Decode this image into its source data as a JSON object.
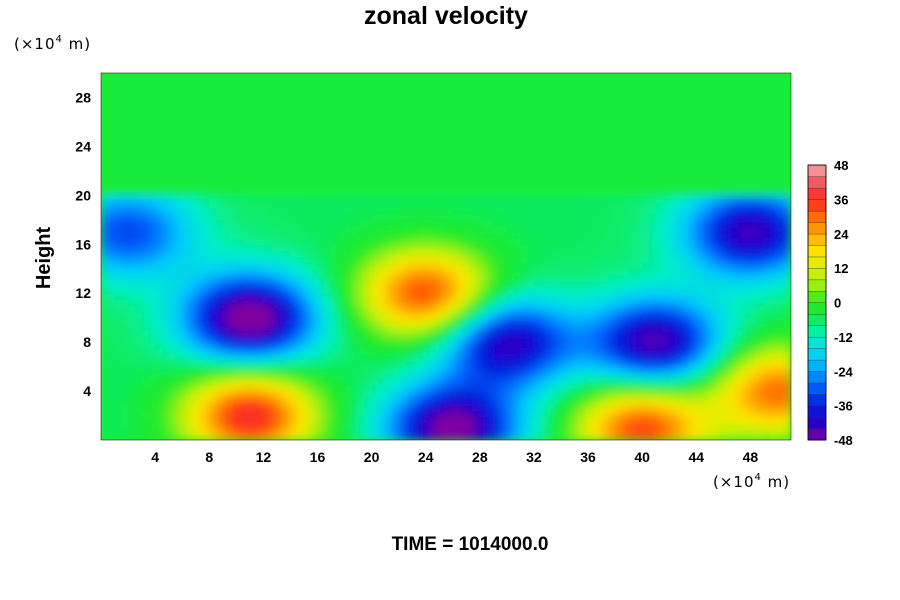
{
  "chart_data": {
    "type": "heatmap",
    "title": "zonal velocity",
    "ylabel": "Height",
    "xlabel": "",
    "x_unit": {
      "base": "(×10",
      "exp": "4",
      "tail": " m)"
    },
    "y_unit": {
      "base": "(×10",
      "exp": "4",
      "tail": " m)"
    },
    "xlim": [
      0,
      51
    ],
    "ylim": [
      0,
      30
    ],
    "x_ticks": [
      4,
      8,
      12,
      16,
      20,
      24,
      28,
      32,
      36,
      40,
      44,
      48
    ],
    "y_ticks": [
      4,
      8,
      12,
      16,
      20,
      24,
      28
    ],
    "colorbar": {
      "range": [
        -48,
        48
      ],
      "step": 4,
      "tick_values": [
        48,
        36,
        24,
        12,
        0,
        -12,
        -24,
        -36,
        -48
      ],
      "tick_labels": [
        "48",
        "36",
        "24",
        "12",
        "0",
        "-12",
        "-24",
        "-36",
        "-48"
      ]
    },
    "field_features": [
      {
        "kind": "uniform",
        "y_range": [
          20,
          30
        ],
        "value": -4
      },
      {
        "kind": "blob",
        "x": 11,
        "y": 10,
        "value": -46
      },
      {
        "kind": "blob",
        "x": 24,
        "y": 12,
        "value": 40
      },
      {
        "kind": "blob",
        "x": 41,
        "y": 8,
        "value": -40
      },
      {
        "kind": "blob",
        "x": 48,
        "y": 17,
        "value": -38
      },
      {
        "kind": "blob",
        "x": 2,
        "y": 17,
        "value": -26
      },
      {
        "kind": "blob",
        "x": 11,
        "y": 2,
        "value": 44
      },
      {
        "kind": "blob",
        "x": 26,
        "y": 1,
        "value": -44
      },
      {
        "kind": "blob",
        "x": 30,
        "y": 8,
        "value": -38
      },
      {
        "kind": "blob",
        "x": 40,
        "y": 1,
        "value": 40
      },
      {
        "kind": "blob",
        "x": 50,
        "y": 4,
        "value": 36
      }
    ],
    "footer": "TIME = 1014000.0"
  }
}
